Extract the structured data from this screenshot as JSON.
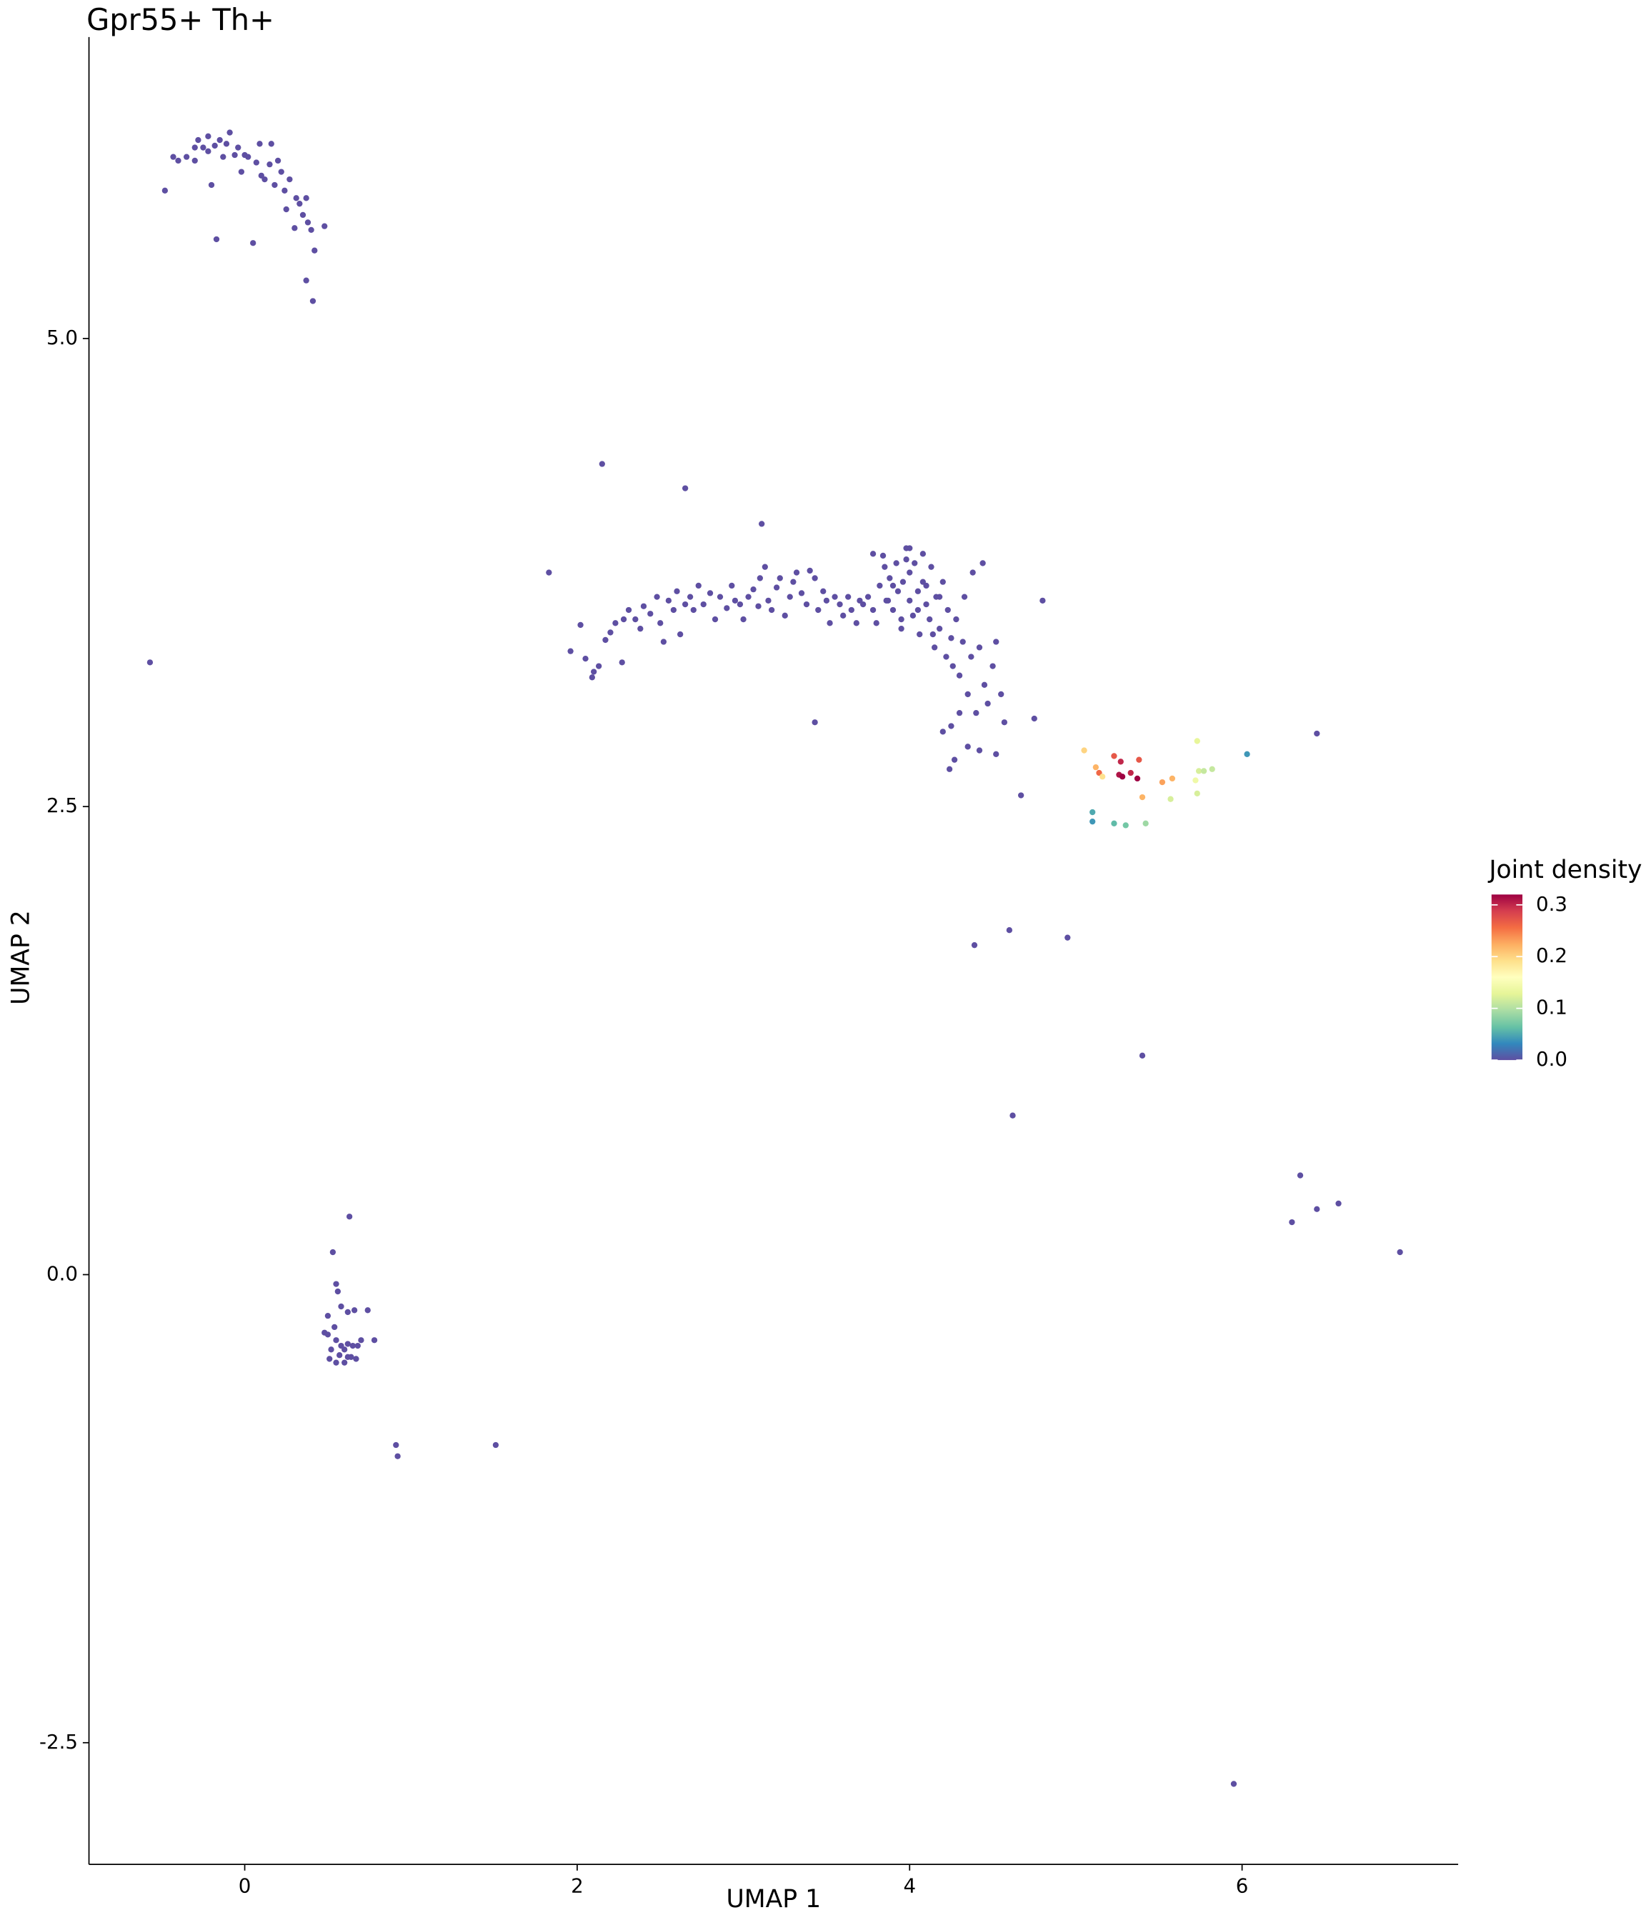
{
  "chart_data": {
    "type": "scatter",
    "title": "Gpr55+ Th+",
    "x_label": "UMAP 1",
    "y_label": "UMAP 2",
    "xlim": [
      -0.937,
      7.3
    ],
    "ylim": [
      -3.15,
      6.61
    ],
    "xticks": [
      0,
      2,
      4,
      6
    ],
    "yticks": [
      {
        "value": -2.5,
        "label": "-2.5"
      },
      {
        "value": 0,
        "label": "0.0"
      },
      2.5,
      {
        "value": 5,
        "label": "5.0"
      }
    ],
    "x": [
      -0.48,
      -0.4,
      -0.35,
      -0.3,
      -0.28,
      -0.25,
      -0.22,
      -0.2,
      -0.18,
      -0.17,
      -0.15,
      -0.13,
      -0.11,
      -0.09,
      -0.06,
      -0.04,
      -0.02,
      0,
      0.02,
      0.05,
      0.07,
      0.09,
      0.1,
      0.12,
      0.15,
      0.16,
      0.18,
      0.2,
      0.22,
      0.24,
      0.25,
      0.27,
      0.3,
      0.31,
      0.33,
      0.35,
      0.37,
      0.38,
      0.4,
      0.42,
      0.37,
      0.41,
      0.48,
      -0.43,
      -0.3,
      -0.22,
      -0.57,
      0.63,
      0.53,
      0.55,
      0.56,
      0.5,
      0.58,
      0.62,
      0.66,
      0.74,
      0.48,
      0.5,
      0.52,
      0.55,
      0.58,
      0.6,
      0.62,
      0.65,
      0.68,
      0.7,
      0.78,
      0.51,
      0.55,
      0.6,
      0.64,
      0.67,
      0.57,
      0.62,
      0.54,
      0.91,
      0.92,
      1.51,
      1.83,
      1.96,
      2.02,
      2.05,
      2.09,
      2.1,
      2.13,
      2.17,
      2.2,
      2.23,
      2.27,
      2.28,
      2.31,
      2.35,
      2.38,
      2.4,
      2.44,
      2.48,
      2.5,
      2.52,
      2.55,
      2.58,
      2.6,
      2.62,
      2.65,
      2.68,
      2.7,
      2.73,
      2.76,
      2.8,
      2.83,
      2.86,
      2.9,
      2.93,
      2.95,
      2.98,
      3.0,
      3.03,
      3.06,
      3.09,
      3.1,
      3.13,
      3.15,
      3.17,
      3.2,
      3.22,
      3.25,
      3.28,
      3.3,
      3.32,
      3.35,
      3.38,
      3.4,
      3.43,
      3.45,
      3.48,
      3.5,
      3.52,
      3.55,
      3.58,
      3.6,
      3.63,
      3.65,
      3.68,
      3.7,
      3.72,
      3.75,
      3.78,
      3.8,
      3.82,
      3.84,
      3.86,
      3.88,
      3.9,
      3.92,
      3.93,
      3.95,
      3.96,
      3.98,
      4.0,
      4.0,
      4.02,
      4.03,
      4.05,
      4.06,
      4.08,
      4.1,
      4.12,
      4.13,
      4.15,
      4.16,
      4.18,
      4.2,
      4.22,
      4.23,
      4.25,
      4.26,
      4.28,
      4.3,
      4.32,
      4.33,
      4.35,
      4.37,
      4.38,
      4.4,
      4.42,
      4.44,
      4.45,
      4.47,
      4.5,
      4.52,
      4.55,
      4.57,
      4.25,
      4.27,
      4.24,
      4.35,
      4.42,
      4.52,
      4.2,
      4.3,
      3.95,
      3.9,
      4.08,
      4.0,
      3.85,
      3.87,
      3.98,
      3.78,
      4.1,
      4.18,
      4.05,
      4.14,
      2.15,
      2.65,
      3.11,
      3.43,
      4.75,
      4.8,
      4.67,
      4.39,
      4.6,
      4.95,
      5.4,
      4.62,
      6.35,
      6.3,
      6.45,
      6.58,
      6.95,
      5.95,
      6.45,
      5.05,
      5.12,
      5.14,
      5.16,
      5.23,
      5.27,
      5.26,
      5.28,
      5.33,
      5.37,
      5.38,
      5.4,
      5.52,
      5.58,
      5.57,
      5.72,
      5.74,
      5.73,
      5.77,
      5.82,
      5.73,
      5.1,
      5.1,
      5.23,
      5.3,
      5.42,
      6.03
    ],
    "values": [
      5.79,
      5.95,
      5.97,
      5.95,
      6.06,
      6.02,
      6.0,
      5.82,
      6.03,
      5.53,
      6.06,
      5.97,
      6.04,
      6.1,
      5.98,
      6.02,
      5.89,
      5.98,
      5.97,
      5.51,
      5.94,
      6.04,
      5.87,
      5.85,
      5.93,
      6.04,
      5.82,
      5.95,
      5.89,
      5.79,
      5.69,
      5.85,
      5.59,
      5.75,
      5.72,
      5.66,
      5.75,
      5.62,
      5.58,
      5.47,
      5.31,
      5.2,
      5.6,
      5.97,
      6.02,
      6.08,
      3.27,
      0.31,
      0.12,
      -0.05,
      -0.09,
      -0.22,
      -0.17,
      -0.2,
      -0.19,
      -0.19,
      -0.31,
      -0.32,
      -0.4,
      -0.35,
      -0.38,
      -0.4,
      -0.37,
      -0.38,
      -0.38,
      -0.35,
      -0.35,
      -0.45,
      -0.47,
      -0.47,
      -0.44,
      -0.45,
      -0.43,
      -0.44,
      -0.28,
      -0.91,
      -0.97,
      -0.91,
      3.75,
      3.33,
      3.47,
      3.29,
      3.19,
      3.22,
      3.25,
      3.39,
      3.43,
      3.48,
      3.27,
      3.5,
      3.55,
      3.5,
      3.45,
      3.57,
      3.53,
      3.62,
      3.48,
      3.38,
      3.6,
      3.55,
      3.65,
      3.42,
      3.58,
      3.62,
      3.55,
      3.68,
      3.58,
      3.64,
      3.5,
      3.62,
      3.56,
      3.68,
      3.6,
      3.58,
      3.5,
      3.62,
      3.66,
      3.57,
      3.72,
      3.78,
      3.6,
      3.55,
      3.67,
      3.72,
      3.52,
      3.62,
      3.7,
      3.75,
      3.64,
      3.58,
      3.76,
      3.72,
      3.55,
      3.65,
      3.6,
      3.48,
      3.62,
      3.58,
      3.52,
      3.62,
      3.55,
      3.48,
      3.6,
      3.58,
      3.62,
      3.55,
      3.48,
      3.68,
      3.84,
      3.6,
      3.72,
      3.55,
      3.8,
      3.65,
      3.45,
      3.7,
      3.88,
      3.6,
      3.75,
      3.52,
      3.8,
      3.65,
      3.42,
      3.7,
      3.58,
      3.5,
      3.78,
      3.35,
      3.62,
      3.45,
      3.7,
      3.3,
      3.55,
      3.4,
      3.25,
      3.5,
      3.2,
      3.38,
      3.62,
      3.1,
      3.3,
      3.75,
      3.0,
      3.35,
      3.8,
      3.15,
      3.05,
      3.25,
      3.38,
      3.1,
      2.95,
      2.93,
      2.75,
      2.7,
      2.82,
      2.8,
      2.78,
      2.9,
      3.0,
      3.5,
      3.68,
      3.85,
      3.88,
      3.78,
      3.6,
      3.82,
      3.85,
      3.68,
      3.62,
      3.55,
      3.42,
      4.33,
      4.2,
      4.01,
      2.95,
      2.97,
      3.6,
      2.56,
      1.76,
      1.84,
      1.8,
      1.17,
      0.85,
      0.53,
      0.28,
      0.35,
      0.38,
      0.12,
      -2.72,
      2.89,
      2.8,
      2.71,
      2.68,
      2.66,
      2.77,
      2.74,
      2.67,
      2.66,
      2.68,
      2.65,
      2.75,
      2.55,
      2.63,
      2.65,
      2.54,
      2.64,
      2.69,
      2.85,
      2.69,
      2.7,
      2.57,
      2.47,
      2.42,
      2.41,
      2.4,
      2.41,
      2.78
    ],
    "density": [
      0,
      0,
      0,
      0,
      0,
      0,
      0,
      0,
      0,
      0,
      0,
      0,
      0,
      0,
      0,
      0,
      0,
      0,
      0,
      0,
      0,
      0,
      0,
      0,
      0,
      0,
      0,
      0,
      0,
      0,
      0,
      0,
      0,
      0,
      0,
      0,
      0,
      0,
      0,
      0,
      0,
      0,
      0,
      0,
      0,
      0,
      0,
      0,
      0,
      0,
      0,
      0,
      0,
      0,
      0,
      0,
      0,
      0,
      0,
      0,
      0,
      0,
      0,
      0,
      0,
      0,
      0,
      0,
      0,
      0,
      0,
      0,
      0,
      0,
      0,
      0,
      0,
      0,
      0,
      0,
      0,
      0,
      0,
      0,
      0,
      0,
      0,
      0,
      0,
      0,
      0,
      0,
      0,
      0,
      0,
      0,
      0,
      0,
      0,
      0,
      0,
      0,
      0,
      0,
      0,
      0,
      0,
      0,
      0,
      0,
      0,
      0,
      0,
      0,
      0,
      0,
      0,
      0,
      0,
      0,
      0,
      0,
      0,
      0,
      0,
      0,
      0,
      0,
      0,
      0,
      0,
      0,
      0,
      0,
      0,
      0,
      0,
      0,
      0,
      0,
      0,
      0,
      0,
      0,
      0,
      0,
      0,
      0,
      0,
      0,
      0,
      0,
      0,
      0,
      0,
      0,
      0,
      0,
      0,
      0,
      0,
      0,
      0,
      0,
      0,
      0,
      0,
      0,
      0,
      0,
      0,
      0,
      0,
      0,
      0,
      0,
      0,
      0,
      0,
      0,
      0,
      0,
      0,
      0,
      0,
      0,
      0,
      0,
      0,
      0,
      0,
      0,
      0,
      0,
      0,
      0,
      0,
      0,
      0,
      0,
      0,
      0,
      0,
      0,
      0,
      0,
      0,
      0,
      0,
      0,
      0,
      0,
      0,
      0,
      0,
      0,
      0,
      0,
      0,
      0,
      0,
      0,
      0,
      0,
      0,
      0,
      0,
      0,
      0,
      0,
      0.2,
      0.22,
      0.26,
      0.19,
      0.27,
      0.3,
      0.31,
      0.32,
      0.3,
      0.32,
      0.27,
      0.22,
      0.23,
      0.22,
      0.12,
      0.14,
      0.12,
      0.13,
      0.11,
      0.11,
      0.12,
      0.05,
      0.04,
      0.06,
      0.07,
      0.09,
      0.04
    ],
    "colorbar": {
      "title": "Joint density",
      "lim": [
        0,
        0.32
      ],
      "ticks": [
        {
          "value": 0,
          "label": "0.0"
        },
        0.1,
        0.2,
        0.3
      ],
      "colors": [
        "#5e4fa2",
        "#3288bd",
        "#66c2a5",
        "#abdda4",
        "#e6f598",
        "#ffffbf",
        "#fee08b",
        "#fdae61",
        "#f46d43",
        "#d53e4f",
        "#9e0142"
      ]
    }
  }
}
